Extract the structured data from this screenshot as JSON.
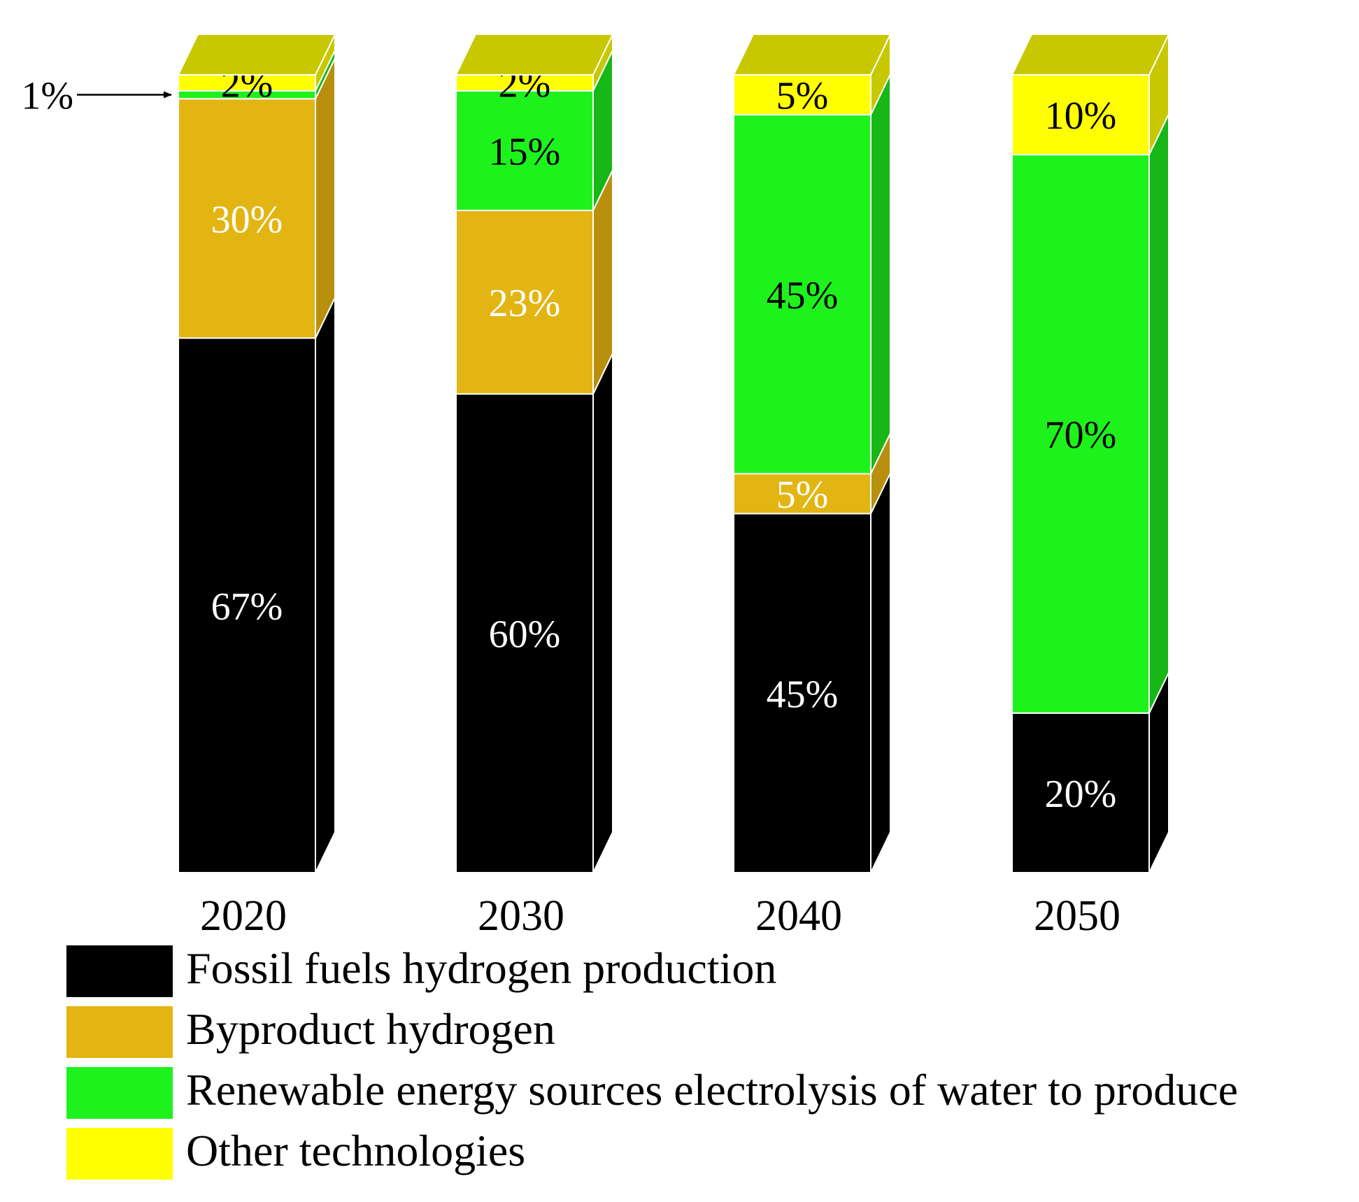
{
  "chart_data": {
    "type": "bar",
    "stacked": true,
    "style": "3d",
    "categories": [
      "2020",
      "2030",
      "2040",
      "2050"
    ],
    "series": [
      {
        "name": "Fossil fuels hydrogen production",
        "color": "#000000",
        "side_color": "#000000",
        "label_color": "#ffffff",
        "values": [
          67,
          60,
          45,
          20
        ],
        "labels": [
          "67%",
          "60%",
          "45%",
          "20%"
        ]
      },
      {
        "name": "Byproduct hydrogen",
        "color": "#e3b512",
        "side_color": "#b8900e",
        "label_color": "#ffffff",
        "values": [
          30,
          23,
          5,
          0
        ],
        "labels": [
          "30%",
          "23%",
          "5%",
          ""
        ]
      },
      {
        "name": "Renewable energy sources electrolysis of water to produce",
        "color": "#1df21d",
        "side_color": "#16b716",
        "label_color": "#000000",
        "values": [
          1,
          15,
          45,
          70
        ],
        "labels": [
          "",
          "15%",
          "45%",
          "70%"
        ]
      },
      {
        "name": "Other technologies",
        "color": "#ffff00",
        "side_color": "#c8c800",
        "label_color": "#000000",
        "values": [
          2,
          2,
          5,
          10
        ],
        "labels": [
          "2%",
          "2%",
          "5%",
          "10%"
        ]
      }
    ],
    "top_face_color": "#c8c800",
    "annotations": [
      {
        "text": "1%",
        "category": "2020",
        "series": "Renewable energy sources electrolysis of water to produce"
      }
    ],
    "legend": {
      "position": "bottom-left"
    },
    "title": "",
    "xlabel": "",
    "ylabel": "",
    "ylim": [
      0,
      100
    ],
    "grid": false
  }
}
